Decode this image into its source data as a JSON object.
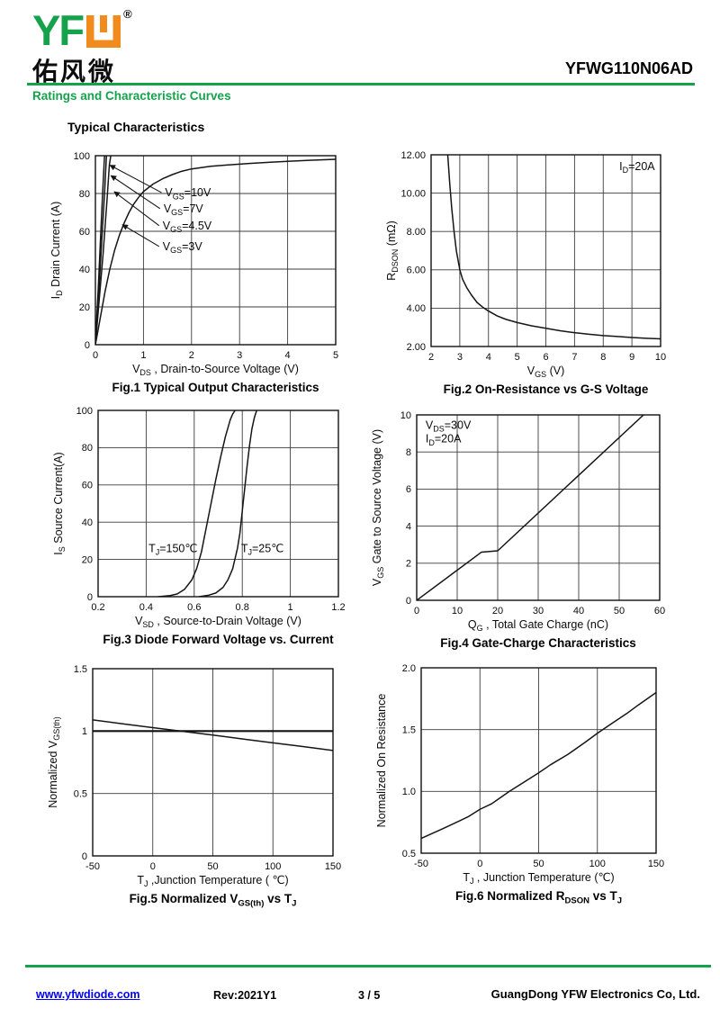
{
  "header": {
    "logo_latin": "YF",
    "logo_w_icon": "orange-bracket-w",
    "reg_mark": "®",
    "logo_cn": "佑风微",
    "part_number": "YFWG110N06AD",
    "section_title": "Ratings and Characteristic Curves",
    "page_heading": "Typical Characteristics"
  },
  "footer": {
    "website": "www.yfwdiode.com",
    "revision": "Rev:2021Y1",
    "page": "3 / 5",
    "company": "GuangDong YFW Electronics Co, Ltd."
  },
  "colors": {
    "brand_green": "#15a24b",
    "brand_orange": "#f28b1e",
    "link_blue": "#0000ee",
    "curve_black": "#151515"
  },
  "chart_data": [
    {
      "type": "line",
      "caption": "Fig.1 Typical Output Characteristics",
      "xlabel": "V~DS~ , Drain-to-Source Voltage (V)",
      "ylabel": "I~D~ Drain Current (A)",
      "xlim": [
        0,
        5
      ],
      "ylim": [
        0,
        100
      ],
      "xticks": [
        0,
        1,
        2,
        3,
        4,
        5
      ],
      "xtick_labels": [
        "0",
        "1",
        "2",
        "3",
        "4",
        "5"
      ],
      "yticks": [
        0,
        20,
        40,
        60,
        80,
        100
      ],
      "ytick_labels": [
        "0",
        "20",
        "40",
        "60",
        "80",
        "100"
      ],
      "series": [
        {
          "name": "VGS=10V",
          "points": [
            [
              0,
              0
            ],
            [
              0.06,
              30
            ],
            [
              0.11,
              58
            ],
            [
              0.15,
              80
            ],
            [
              0.19,
              100
            ]
          ]
        },
        {
          "name": "VGS=7V",
          "points": [
            [
              0,
              0
            ],
            [
              0.07,
              27
            ],
            [
              0.13,
              54
            ],
            [
              0.19,
              80
            ],
            [
              0.23,
              100
            ]
          ]
        },
        {
          "name": "VGS=4.5V",
          "points": [
            [
              0,
              0
            ],
            [
              0.08,
              24
            ],
            [
              0.16,
              48
            ],
            [
              0.24,
              76
            ],
            [
              0.29,
              95
            ],
            [
              0.32,
              100
            ]
          ]
        },
        {
          "name": "VGS=3V",
          "points": [
            [
              0,
              0
            ],
            [
              0.1,
              14
            ],
            [
              0.2,
              28
            ],
            [
              0.3,
              40
            ],
            [
              0.4,
              50
            ],
            [
              0.5,
              58
            ],
            [
              0.6,
              64.5
            ],
            [
              0.7,
              70
            ],
            [
              0.8,
              74.5
            ],
            [
              0.9,
              78
            ],
            [
              1.0,
              81
            ],
            [
              1.2,
              85
            ],
            [
              1.4,
              87.8
            ],
            [
              1.6,
              90
            ],
            [
              1.8,
              91.8
            ],
            [
              2.0,
              93
            ],
            [
              2.4,
              94.4
            ],
            [
              2.8,
              95.2
            ],
            [
              3.2,
              95.9
            ],
            [
              3.6,
              96.5
            ],
            [
              4.0,
              97
            ],
            [
              4.5,
              97.6
            ],
            [
              5.0,
              98.1
            ]
          ]
        }
      ],
      "texts": [
        {
          "t": "V~GS~=10V",
          "x": 1.45,
          "y": 80.5,
          "arrow": [
            0.3,
            95
          ]
        },
        {
          "t": "V~GS~=7V",
          "x": 1.42,
          "y": 72,
          "arrow": [
            0.32,
            89.5
          ]
        },
        {
          "t": "V~GS~=4.5V",
          "x": 1.4,
          "y": 63,
          "arrow": [
            0.39,
            81
          ]
        },
        {
          "t": "V~GS~=3V",
          "x": 1.4,
          "y": 52,
          "arrow": [
            0.56,
            63.5
          ]
        }
      ]
    },
    {
      "type": "line",
      "caption": "Fig.2 On-Resistance vs G-S Voltage",
      "xlabel": "V~GS~ (V)",
      "ylabel": "R~DSON~ (mΩ)",
      "xlim": [
        2,
        10
      ],
      "ylim": [
        2,
        12
      ],
      "xticks": [
        2,
        3,
        4,
        5,
        6,
        7,
        8,
        9,
        10
      ],
      "xtick_labels": [
        "2",
        "3",
        "4",
        "5",
        "6",
        "7",
        "8",
        "9",
        "10"
      ],
      "yticks": [
        2,
        4,
        6,
        8,
        10,
        12
      ],
      "ytick_labels": [
        "2.00",
        "4.00",
        "6.00",
        "8.00",
        "10.00",
        "12.00"
      ],
      "series": [
        {
          "name": "RDSON vs VGS at ID=20A",
          "points": [
            [
              2.58,
              12
            ],
            [
              2.65,
              10.5
            ],
            [
              2.72,
              9.2
            ],
            [
              2.8,
              8.0
            ],
            [
              2.88,
              7.0
            ],
            [
              3.0,
              6.0
            ],
            [
              3.1,
              5.5
            ],
            [
              3.25,
              5.05
            ],
            [
              3.4,
              4.7
            ],
            [
              3.6,
              4.3
            ],
            [
              3.8,
              4.05
            ],
            [
              4.0,
              3.85
            ],
            [
              4.3,
              3.6
            ],
            [
              4.6,
              3.42
            ],
            [
              5.0,
              3.25
            ],
            [
              5.5,
              3.08
            ],
            [
              6.0,
              2.95
            ],
            [
              6.5,
              2.82
            ],
            [
              7.0,
              2.72
            ],
            [
              7.5,
              2.64
            ],
            [
              8.0,
              2.57
            ],
            [
              8.5,
              2.52
            ],
            [
              9.0,
              2.47
            ],
            [
              9.5,
              2.43
            ],
            [
              10.0,
              2.4
            ]
          ]
        }
      ],
      "texts": [
        {
          "t": "I~D~=20A",
          "x": 9.8,
          "y": 11.4,
          "anchor": "end"
        }
      ]
    },
    {
      "type": "line",
      "caption": "Fig.3 Diode Forward Voltage vs. Current",
      "xlabel": "V~SD~ , Source-to-Drain Voltage (V)",
      "ylabel": "I~S~ Source Current(A)",
      "xlim": [
        0.2,
        1.2
      ],
      "ylim": [
        0,
        100
      ],
      "xticks": [
        0.2,
        0.4,
        0.6,
        0.8,
        1,
        1.2
      ],
      "xtick_labels": [
        "0.2",
        "0.4",
        "0.6",
        "0.8",
        "1",
        "1.2"
      ],
      "yticks": [
        0,
        20,
        40,
        60,
        80,
        100
      ],
      "ytick_labels": [
        "0",
        "20",
        "40",
        "60",
        "80",
        "100"
      ],
      "series": [
        {
          "name": "TJ=150C",
          "points": [
            [
              0.45,
              0
            ],
            [
              0.5,
              0.6
            ],
            [
              0.53,
              1.5
            ],
            [
              0.56,
              4
            ],
            [
              0.59,
              9
            ],
            [
              0.61,
              15
            ],
            [
              0.63,
              24
            ],
            [
              0.65,
              37
            ],
            [
              0.67,
              50
            ],
            [
              0.69,
              63
            ],
            [
              0.71,
              75
            ],
            [
              0.73,
              86
            ],
            [
              0.75,
              95
            ],
            [
              0.76,
              98
            ],
            [
              0.77,
              100
            ]
          ]
        },
        {
          "name": "TJ=25C",
          "points": [
            [
              0.62,
              0
            ],
            [
              0.66,
              0.8
            ],
            [
              0.69,
              2
            ],
            [
              0.72,
              5
            ],
            [
              0.74,
              9
            ],
            [
              0.76,
              15
            ],
            [
              0.78,
              26
            ],
            [
              0.79,
              34
            ],
            [
              0.8,
              46
            ],
            [
              0.81,
              58
            ],
            [
              0.82,
              70
            ],
            [
              0.83,
              81
            ],
            [
              0.84,
              90
            ],
            [
              0.85,
              96
            ],
            [
              0.86,
              100
            ]
          ]
        }
      ],
      "texts": [
        {
          "t": "T~J~=150℃",
          "x": 0.41,
          "y": 26
        },
        {
          "t": "T~J~=25℃",
          "x": 0.795,
          "y": 26
        }
      ]
    },
    {
      "type": "line",
      "caption": "Fig.4 Gate-Charge Characteristics",
      "xlabel": "Q~G~ , Total Gate Charge (nC)",
      "ylabel": "V~GS~  Gate to Source Voltage (V)",
      "xlim": [
        0,
        60
      ],
      "ylim": [
        0,
        10
      ],
      "xticks": [
        0,
        10,
        20,
        30,
        40,
        50,
        60
      ],
      "xtick_labels": [
        "0",
        "10",
        "20",
        "30",
        "40",
        "50",
        "60"
      ],
      "yticks": [
        0,
        2,
        4,
        6,
        8,
        10
      ],
      "ytick_labels": [
        "0",
        "2",
        "4",
        "6",
        "8",
        "10"
      ],
      "series": [
        {
          "name": "VGS vs QG",
          "points": [
            [
              0,
              0
            ],
            [
              16,
              2.6
            ],
            [
              20,
              2.67
            ],
            [
              56,
              10
            ]
          ]
        }
      ],
      "texts": [
        {
          "t": "V~DS~=30V",
          "x": 2.2,
          "y": 9.45
        },
        {
          "t": "I~D~=20A",
          "x": 2.2,
          "y": 8.72
        }
      ]
    },
    {
      "type": "line",
      "caption": "Fig.5 Normalized V~GS(th)~ vs T~J~",
      "xlabel": "T~J~ ,Junction Temperature ( ℃)",
      "ylabel": "Normalized V~GS(th)~",
      "xlim": [
        -50,
        150
      ],
      "ylim": [
        0,
        1.5
      ],
      "xticks": [
        -50,
        0,
        50,
        100,
        150
      ],
      "xtick_labels": [
        "-50",
        "0",
        "50",
        "100",
        "150"
      ],
      "yticks": [
        0,
        0.5,
        1,
        1.5
      ],
      "ytick_labels": [
        "0",
        "0.5",
        "1",
        "1.5"
      ],
      "emph_hline": 1,
      "series": [
        {
          "name": "Normalized VGS(th)",
          "points": [
            [
              -50,
              1.09
            ],
            [
              -25,
              1.058
            ],
            [
              0,
              1.028
            ],
            [
              25,
              0.998
            ],
            [
              50,
              0.968
            ],
            [
              75,
              0.937
            ],
            [
              100,
              0.906
            ],
            [
              125,
              0.876
            ],
            [
              150,
              0.845
            ]
          ]
        }
      ],
      "texts": []
    },
    {
      "type": "line",
      "caption": "Fig.6 Normalized R~DSON~ vs T~J~",
      "xlabel": "T~J~ , Junction Temperature (℃)",
      "ylabel": "Normalized On Resistance",
      "xlim": [
        -50,
        150
      ],
      "ylim": [
        0.5,
        2.0
      ],
      "xticks": [
        -50,
        0,
        50,
        100,
        150
      ],
      "xtick_labels": [
        "-50",
        "0",
        "50",
        "100",
        "150"
      ],
      "yticks": [
        0.5,
        1.0,
        1.5,
        2.0
      ],
      "ytick_labels": [
        "0.5",
        "1.0",
        "1.5",
        "2.0"
      ],
      "series": [
        {
          "name": "Normalized RDSON",
          "points": [
            [
              -50,
              0.62
            ],
            [
              -30,
              0.705
            ],
            [
              -10,
              0.795
            ],
            [
              0,
              0.855
            ],
            [
              10,
              0.9
            ],
            [
              25,
              1.0
            ],
            [
              40,
              1.09
            ],
            [
              50,
              1.15
            ],
            [
              60,
              1.215
            ],
            [
              75,
              1.3
            ],
            [
              90,
              1.4
            ],
            [
              100,
              1.47
            ],
            [
              110,
              1.535
            ],
            [
              125,
              1.63
            ],
            [
              135,
              1.7
            ],
            [
              150,
              1.8
            ]
          ]
        }
      ],
      "texts": []
    }
  ]
}
